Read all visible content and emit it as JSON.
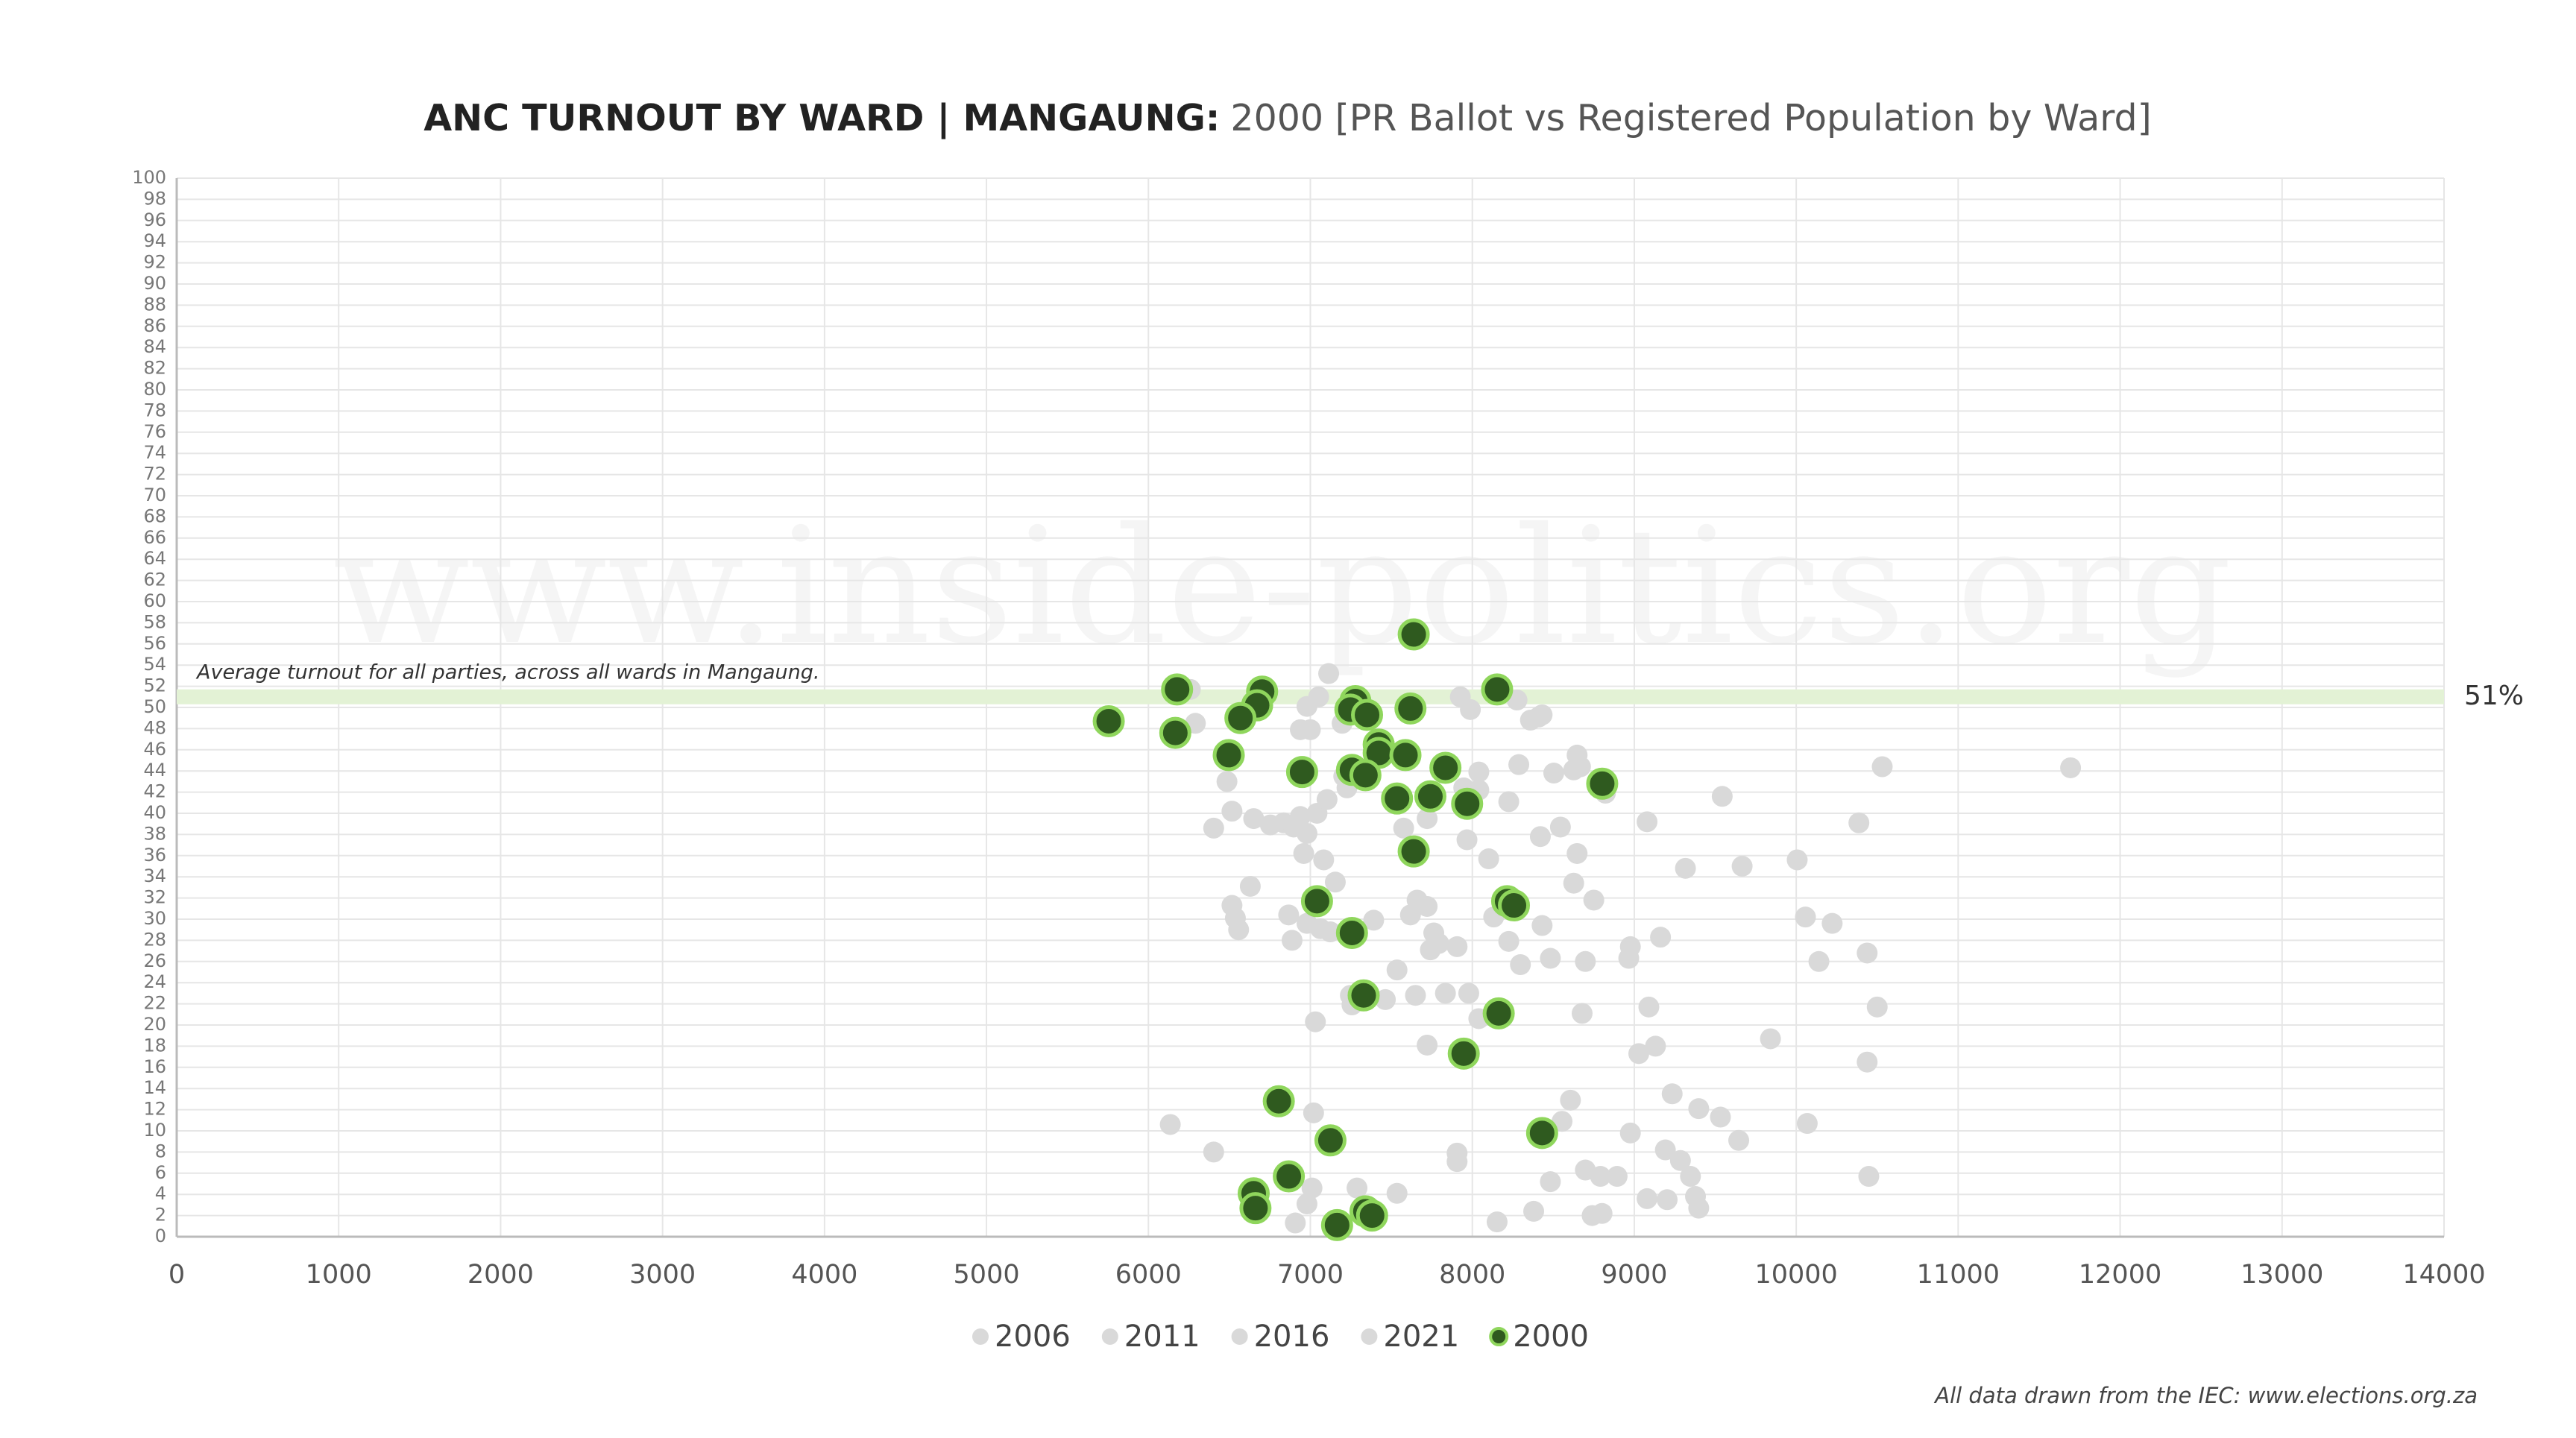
{
  "chart_data": {
    "type": "scatter",
    "title": "ANC TURNOUT BY WARD | MANGAUNG:",
    "title_detail": "2000 [PR Ballot vs Registered Population by Ward]",
    "watermark": "www.inside-politics.org",
    "annotation": "Average turnout for all parties, across all wards in Mangaung.",
    "average_line": {
      "value": 51,
      "label": "51%"
    },
    "average_color": "#e3f2d5",
    "source": "All data drawn from the IEC: www.elections.org.za",
    "xlim": [
      0,
      14000
    ],
    "xticks": [
      0,
      1000,
      2000,
      3000,
      4000,
      5000,
      6000,
      7000,
      8000,
      9000,
      10000,
      11000,
      12000,
      13000,
      14000
    ],
    "ylim": [
      0,
      100
    ],
    "yticks": [
      0,
      2,
      4,
      6,
      8,
      10,
      12,
      14,
      16,
      18,
      20,
      22,
      24,
      26,
      28,
      30,
      32,
      34,
      36,
      38,
      40,
      42,
      44,
      46,
      48,
      50,
      52,
      54,
      56,
      58,
      60,
      62,
      64,
      66,
      68,
      70,
      72,
      74,
      76,
      78,
      80,
      82,
      84,
      86,
      88,
      90,
      92,
      94,
      96,
      98,
      100
    ],
    "grid": true,
    "legend": "bottom",
    "series": [
      {
        "name": "2006",
        "color": "#d9d9d9",
        "x": [
          6259,
          6290,
          7113,
          7051,
          6979,
          7000,
          6938,
          7196,
          7926,
          8276,
          8359,
          8410,
          8431,
          7988,
          8040,
          8287,
          8503,
          8647,
          8668,
          8626,
          8822,
          7947,
          8225,
          8040,
          7721,
          7576,
          6485,
          6516,
          6403,
          6650,
          6753,
          6835,
          6897,
          7041,
          7103,
          7206,
          7226
        ],
        "values": [
          51.7,
          48.5,
          53.2,
          51.0,
          50.1,
          47.9,
          47.9,
          48.5,
          51.0,
          50.7,
          48.8,
          49.1,
          49.3,
          49.8,
          43.9,
          44.6,
          43.8,
          45.5,
          44.4,
          44.1,
          41.9,
          42.4,
          41.1,
          42.2,
          39.5,
          38.6,
          43.0,
          40.2,
          38.6,
          39.5,
          38.9,
          39.1,
          38.7,
          40.0,
          41.3,
          43.5,
          42.4
        ]
      },
      {
        "name": "2011",
        "color": "#d9d9d9",
        "x": [
          6938,
          6979,
          6959,
          7082,
          7154,
          6629,
          6516,
          6537,
          6557,
          6866,
          6887,
          6979,
          7062,
          7123,
          7391,
          7618,
          7659,
          7721,
          7762,
          7741,
          7793,
          7906,
          8132,
          8225,
          8297,
          8431,
          8482,
          8626,
          8750,
          8647,
          8101,
          7967,
          8420,
          8544,
          9079,
          9543,
          10387
        ],
        "values": [
          39.7,
          38.1,
          36.2,
          35.6,
          33.5,
          33.1,
          31.3,
          30.1,
          29.0,
          30.4,
          28.0,
          29.6,
          29.1,
          28.8,
          29.9,
          30.4,
          31.8,
          31.2,
          28.7,
          27.1,
          27.7,
          27.4,
          30.2,
          27.9,
          25.7,
          29.4,
          26.3,
          33.4,
          31.8,
          36.2,
          35.7,
          37.5,
          37.8,
          38.7,
          39.2,
          41.6,
          39.1
        ]
      },
      {
        "name": "2016",
        "color": "#d9d9d9",
        "x": [
          10531,
          11694,
          10006,
          9666,
          9316,
          10057,
          10222,
          10140,
          10438,
          10500,
          9162,
          8976,
          8966,
          8698,
          9090,
          8678,
          8040,
          7834,
          7978,
          7649,
          7463,
          7247,
          7257,
          7031,
          7535,
          7721,
          9841,
          9131,
          9028,
          9234,
          9398,
          9532,
          9645,
          10068,
          10448,
          10438,
          8606
        ],
        "values": [
          44.4,
          44.3,
          35.6,
          35.0,
          34.8,
          30.2,
          29.6,
          26.0,
          26.8,
          21.7,
          28.3,
          27.4,
          26.3,
          26.0,
          21.7,
          21.1,
          20.6,
          23.0,
          23.0,
          22.8,
          22.4,
          22.8,
          21.9,
          20.3,
          25.2,
          18.1,
          18.7,
          18.0,
          17.3,
          13.5,
          12.1,
          11.3,
          9.1,
          10.7,
          5.7,
          16.5,
          12.9
        ]
      },
      {
        "name": "2021",
        "color": "#d9d9d9",
        "x": [
          8554,
          8976,
          9192,
          9285,
          9347,
          9378,
          9398,
          9079,
          9203,
          8894,
          8791,
          8698,
          8482,
          8801,
          8740,
          8379,
          8153,
          7906,
          7906,
          7535,
          7288,
          7010,
          6979,
          6907,
          7020,
          6135,
          6403
        ],
        "values": [
          10.9,
          9.8,
          8.2,
          7.2,
          5.7,
          3.8,
          2.7,
          3.6,
          3.5,
          5.7,
          5.7,
          6.3,
          5.2,
          2.2,
          2.0,
          2.4,
          1.4,
          7.1,
          7.9,
          4.1,
          4.6,
          4.6,
          3.1,
          1.3,
          11.7,
          10.6,
          8.0
        ]
      },
      {
        "name": "2000",
        "color": "#2f5a1f",
        "stroke": "#8fd65c",
        "x": [
          7638,
          6177,
          6702,
          6671,
          8153,
          7278,
          7247,
          7350,
          7618,
          6568,
          5755,
          6166,
          7422,
          6496,
          7422,
          7587,
          6949,
          7257,
          7340,
          7834,
          8802,
          7535,
          7741,
          7968,
          7638,
          7041,
          8215,
          8257,
          7257,
          7329,
          8163,
          7947,
          6805,
          7124,
          8431,
          6867,
          6650,
          6661,
          7340,
          7381,
          7165
        ],
        "values": [
          56.9,
          51.7,
          51.5,
          50.2,
          51.7,
          50.6,
          49.8,
          49.3,
          49.9,
          49.0,
          48.7,
          47.6,
          46.5,
          45.5,
          45.7,
          45.5,
          43.9,
          44.1,
          43.6,
          44.3,
          42.8,
          41.4,
          41.6,
          40.9,
          36.4,
          31.7,
          31.7,
          31.3,
          28.7,
          22.8,
          21.1,
          17.3,
          12.8,
          9.1,
          9.8,
          5.7,
          4.1,
          2.7,
          2.4,
          2.0,
          1.1
        ]
      }
    ]
  }
}
